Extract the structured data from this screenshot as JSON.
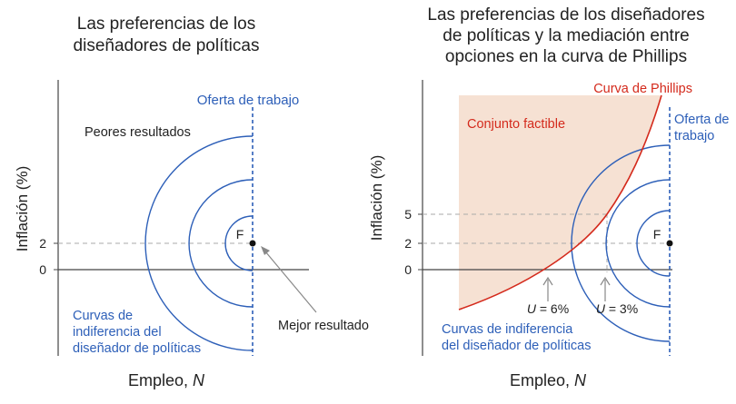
{
  "colors": {
    "blue": "#2d5fb8",
    "red": "#d42a1c",
    "feasible_fill": "#f6e1d3",
    "axis": "#444444",
    "dash": "#aaaaaa",
    "text": "#222222",
    "arrow": "#888888"
  },
  "chart_data": [
    {
      "type": "line",
      "title": "Las preferencias de los diseñadores de políticas",
      "title_lines": [
        "Las preferencias de los",
        "diseñadores de políticas"
      ],
      "xlabel": "Empleo, N",
      "xlabel_plain": "Empleo, ",
      "xlabel_var": "N",
      "ylabel": "Inflación (%)",
      "yticks": [
        0,
        2
      ],
      "ytick_labels": [
        "0",
        "2"
      ],
      "grid": false,
      "labor_supply_label": "Oferta de trabajo",
      "worse_label": "Peores resultados",
      "best_label": "Mejor resultado",
      "point_label": "F",
      "point": {
        "employment": "Oferta de trabajo",
        "inflation": 2
      },
      "indifference_label_lines": [
        "Curvas de",
        "indiferencia del",
        "diseñador de políticas"
      ],
      "series": [
        {
          "name": "Curvas de indiferencia del diseñador de políticas",
          "count": 3
        }
      ]
    },
    {
      "type": "line",
      "title": "Las preferencias de los diseñadores de políticas y la mediación entre opciones en la curva de Phillips",
      "title_lines": [
        "Las preferencias de los diseñadores",
        "de políticas y la mediación entre",
        "opciones en la curva de Phillips"
      ],
      "xlabel": "Empleo, N",
      "xlabel_plain": "Empleo, ",
      "xlabel_var": "N",
      "ylabel": "Inflación (%)",
      "yticks": [
        0,
        2,
        5
      ],
      "ytick_labels": [
        "0",
        "2",
        "5"
      ],
      "grid": false,
      "phillips_label": "Curva de Phillips",
      "feasible_label": "Conjunto factible",
      "labor_supply_label_lines": [
        "Oferta de",
        "trabajo"
      ],
      "point_label": "F",
      "point": {
        "employment": "Oferta de trabajo",
        "inflation": 2
      },
      "unemployment_labels": [
        {
          "var": "U",
          "text": " = 6%",
          "value": 6,
          "inflation": 0
        },
        {
          "var": "U",
          "text": " = 3%",
          "value": 3,
          "inflation": 5
        }
      ],
      "indifference_label_lines": [
        "Curvas de indiferencia",
        "del diseñador de políticas"
      ],
      "series": [
        {
          "name": "Curva de Phillips"
        },
        {
          "name": "Curvas de indiferencia del diseñador de políticas",
          "count": 3
        }
      ]
    }
  ]
}
